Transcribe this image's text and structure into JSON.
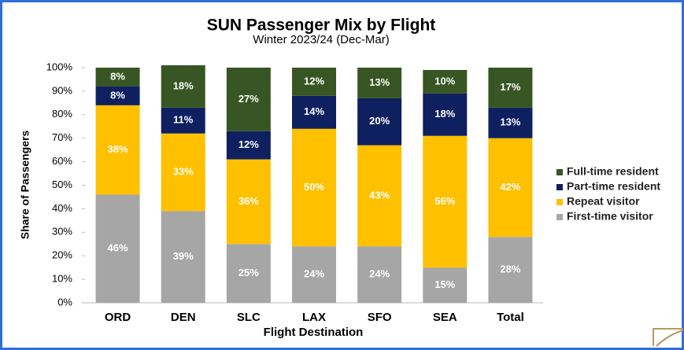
{
  "chart_data": {
    "type": "stacked_bar",
    "title": "SUN Passenger Mix by Flight",
    "subtitle": "Winter 2023/24 (Dec-Mar)",
    "x_label": "Flight Destination",
    "y_label": "Share of Passengers",
    "categories": [
      "ORD",
      "DEN",
      "SLC",
      "LAX",
      "SFO",
      "SEA",
      "Total"
    ],
    "series": [
      {
        "name": "First-time visitor",
        "color": "#a6a6a6",
        "values": [
          46,
          39,
          25,
          24,
          24,
          15,
          28
        ],
        "value_labels": [
          "46%",
          "39%",
          "25%",
          "24%",
          "24%",
          "15%",
          "28%"
        ]
      },
      {
        "name": "Repeat visitor",
        "color": "#ffc000",
        "values": [
          38,
          33,
          36,
          50,
          43,
          56,
          42
        ],
        "value_labels": [
          "38%",
          "33%",
          "36%",
          "50%",
          "43%",
          "56%",
          "42%"
        ]
      },
      {
        "name": "Part-time resident",
        "color": "#0e2060",
        "values": [
          8,
          11,
          12,
          14,
          20,
          18,
          13
        ],
        "value_labels": [
          "8%",
          "11%",
          "12%",
          "14%",
          "20%",
          "18%",
          "13%"
        ]
      },
      {
        "name": "Full-time resident",
        "color": "#375623",
        "values": [
          8,
          18,
          27,
          12,
          13,
          10,
          17
        ],
        "value_labels": [
          "8%",
          "18%",
          "27%",
          "12%",
          "13%",
          "10%",
          "17%"
        ]
      }
    ],
    "ylim": [
      0,
      100
    ],
    "yticks": [
      {
        "value": 0,
        "label": "0%"
      },
      {
        "value": 10,
        "label": "10%"
      },
      {
        "value": 20,
        "label": "20%"
      },
      {
        "value": 30,
        "label": "30%"
      },
      {
        "value": 40,
        "label": "40%"
      },
      {
        "value": 50,
        "label": "50%"
      },
      {
        "value": 60,
        "label": "60%"
      },
      {
        "value": 70,
        "label": "70%"
      },
      {
        "value": 80,
        "label": "80%"
      },
      {
        "value": 90,
        "label": "90%"
      },
      {
        "value": 100,
        "label": "100%"
      }
    ],
    "legend": "right"
  }
}
